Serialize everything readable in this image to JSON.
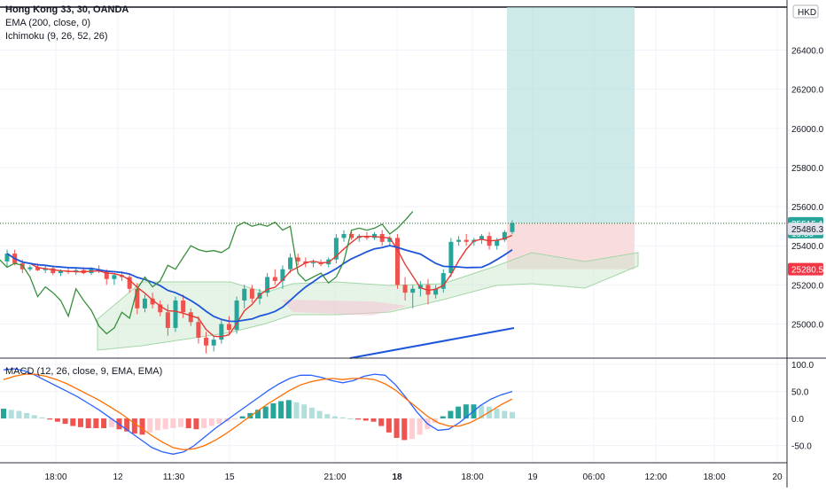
{
  "chart_data": {
    "type": "candlestick",
    "title": "Hong Kong 33, 30, OANDA",
    "currency": "HKD",
    "indicators": [
      "EMA (200, close, 0)",
      "Ichimoku (9, 26, 52, 26)"
    ],
    "price_axis": {
      "ticks": [
        25000.0,
        25200.0,
        25400.0,
        25600.0,
        25800.0,
        26000.0,
        26200.0,
        26400.0
      ],
      "labels": [
        "25000.0",
        "25200.0",
        "25400.0",
        "25600.0",
        "25800.0",
        "26000.0",
        "26200.0",
        "26400.0"
      ],
      "ylim": [
        24830,
        26620
      ]
    },
    "price_badges": [
      {
        "label": "25515.1",
        "sub": "19:50",
        "value": 25515.1,
        "color": "#26a69a"
      },
      {
        "label": "25486.3",
        "value": 25486.3,
        "color": "#e0e3eb"
      },
      {
        "label": "25280.5",
        "value": 25280.5,
        "color": "#f23645"
      }
    ],
    "time_axis": [
      "18:00",
      "12",
      "11:30",
      "15",
      "21:00",
      "18",
      "18:00",
      "19",
      "06:00",
      "12:00",
      "18:00",
      "20"
    ],
    "candles": [
      [
        25320,
        25380,
        25290,
        25360
      ],
      [
        25360,
        25380,
        25300,
        25310
      ],
      [
        25310,
        25330,
        25260,
        25280
      ],
      [
        25280,
        25300,
        25270,
        25290
      ],
      [
        25290,
        25310,
        25270,
        25275
      ],
      [
        25275,
        25300,
        25260,
        25285
      ],
      [
        25285,
        25300,
        25250,
        25260
      ],
      [
        25260,
        25280,
        25245,
        25270
      ],
      [
        25270,
        25290,
        25255,
        25265
      ],
      [
        25265,
        25285,
        25250,
        25275
      ],
      [
        25275,
        25290,
        25255,
        25260
      ],
      [
        25260,
        25290,
        25250,
        25280
      ],
      [
        25280,
        25300,
        25260,
        25270
      ],
      [
        25270,
        25280,
        25200,
        25230
      ],
      [
        25230,
        25260,
        25200,
        25250
      ],
      [
        25250,
        25270,
        25220,
        25240
      ],
      [
        25240,
        25260,
        25160,
        25180
      ],
      [
        25180,
        25210,
        25050,
        25080
      ],
      [
        25080,
        25150,
        25060,
        25130
      ],
      [
        25130,
        25160,
        25080,
        25100
      ],
      [
        25100,
        25120,
        25040,
        25060
      ],
      [
        25060,
        25100,
        24940,
        24980
      ],
      [
        24980,
        25140,
        24960,
        25120
      ],
      [
        25120,
        25150,
        25030,
        25060
      ],
      [
        25060,
        25080,
        24990,
        25010
      ],
      [
        25010,
        25040,
        24900,
        24930
      ],
      [
        24930,
        24960,
        24850,
        24890
      ],
      [
        24890,
        24940,
        24860,
        24920
      ],
      [
        24920,
        25020,
        24900,
        25000
      ],
      [
        25000,
        25040,
        24950,
        24970
      ],
      [
        24970,
        25140,
        24950,
        25120
      ],
      [
        25120,
        25200,
        25080,
        25180
      ],
      [
        25180,
        25200,
        25110,
        25130
      ],
      [
        25130,
        25180,
        25100,
        25160
      ],
      [
        25160,
        25260,
        25140,
        25240
      ],
      [
        25240,
        25280,
        25200,
        25220
      ],
      [
        25220,
        25300,
        25180,
        25280
      ],
      [
        25280,
        25360,
        25260,
        25340
      ],
      [
        25340,
        25360,
        25300,
        25320
      ],
      [
        25320,
        25340,
        25290,
        25310
      ],
      [
        25310,
        25330,
        25290,
        25315
      ],
      [
        25315,
        25330,
        25295,
        25305
      ],
      [
        25305,
        25340,
        25290,
        25330
      ],
      [
        25330,
        25460,
        25310,
        25440
      ],
      [
        25440,
        25480,
        25420,
        25460
      ],
      [
        25460,
        25480,
        25430,
        25440
      ],
      [
        25440,
        25460,
        25420,
        25450
      ],
      [
        25450,
        25470,
        25430,
        25440
      ],
      [
        25440,
        25470,
        25430,
        25460
      ],
      [
        25460,
        25480,
        25400,
        25420
      ],
      [
        25420,
        25450,
        25400,
        25440
      ],
      [
        25440,
        25460,
        25180,
        25200
      ],
      [
        25200,
        25240,
        25120,
        25160
      ],
      [
        25160,
        25200,
        25080,
        25180
      ],
      [
        25180,
        25220,
        25140,
        25200
      ],
      [
        25200,
        25230,
        25100,
        25150
      ],
      [
        25150,
        25200,
        25130,
        25180
      ],
      [
        25180,
        25280,
        25160,
        25260
      ],
      [
        25260,
        25440,
        25240,
        25420
      ],
      [
        25420,
        25450,
        25400,
        25430
      ],
      [
        25430,
        25460,
        25400,
        25420
      ],
      [
        25420,
        25440,
        25400,
        25430
      ],
      [
        25430,
        25460,
        25410,
        25450
      ],
      [
        25450,
        25470,
        25380,
        25400
      ],
      [
        25400,
        25440,
        25380,
        25430
      ],
      [
        25430,
        25480,
        25420,
        25470
      ],
      [
        25470,
        25530,
        25460,
        25515
      ]
    ],
    "ema200": [
      [
        395,
        404
      ],
      [
        580,
        370
      ]
    ],
    "macd_axis": {
      "ticks": [
        100.0,
        50.0,
        0.0,
        -50.0
      ],
      "labels": [
        "100.0",
        "50.0",
        "0.0",
        "-50.0"
      ],
      "ylim": [
        -82,
        110
      ]
    },
    "macd_hist": [
      18,
      16,
      14,
      10,
      6,
      2,
      -2,
      -6,
      -10,
      -14,
      -16,
      -18,
      -18,
      -18,
      -16,
      -20,
      -24,
      -28,
      -30,
      -26,
      -22,
      -20,
      -18,
      -16,
      -18,
      -20,
      -18,
      -14,
      -10,
      -6,
      -2,
      4,
      10,
      16,
      22,
      28,
      32,
      34,
      30,
      26,
      20,
      14,
      8,
      4,
      2,
      0,
      -2,
      -4,
      -6,
      -14,
      -26,
      -36,
      -40,
      -38,
      -30,
      -20,
      -8,
      4,
      14,
      22,
      26,
      26,
      24,
      22,
      18,
      14,
      12
    ],
    "macd_line": [
      90,
      92,
      88,
      80,
      70,
      60,
      50,
      40,
      28,
      16,
      2,
      -12,
      -26,
      -40,
      -54,
      -62,
      -66,
      -62,
      -50,
      -34,
      -18,
      -4,
      10,
      24,
      38,
      52,
      64,
      74,
      80,
      80,
      76,
      70,
      66,
      70,
      78,
      82,
      80,
      62,
      38,
      12,
      -10,
      -22,
      -20,
      -8,
      8,
      24,
      36,
      44,
      50
    ],
    "signal_line": [
      72,
      78,
      82,
      82,
      78,
      72,
      64,
      54,
      44,
      34,
      22,
      10,
      -4,
      -18,
      -32,
      -44,
      -54,
      -58,
      -56,
      -50,
      -40,
      -28,
      -14,
      0,
      14,
      28,
      40,
      52,
      62,
      68,
      72,
      74,
      72,
      74,
      74,
      72,
      64,
      52,
      36,
      20,
      4,
      -8,
      -14,
      -14,
      -8,
      2,
      14,
      26,
      36
    ]
  }
}
